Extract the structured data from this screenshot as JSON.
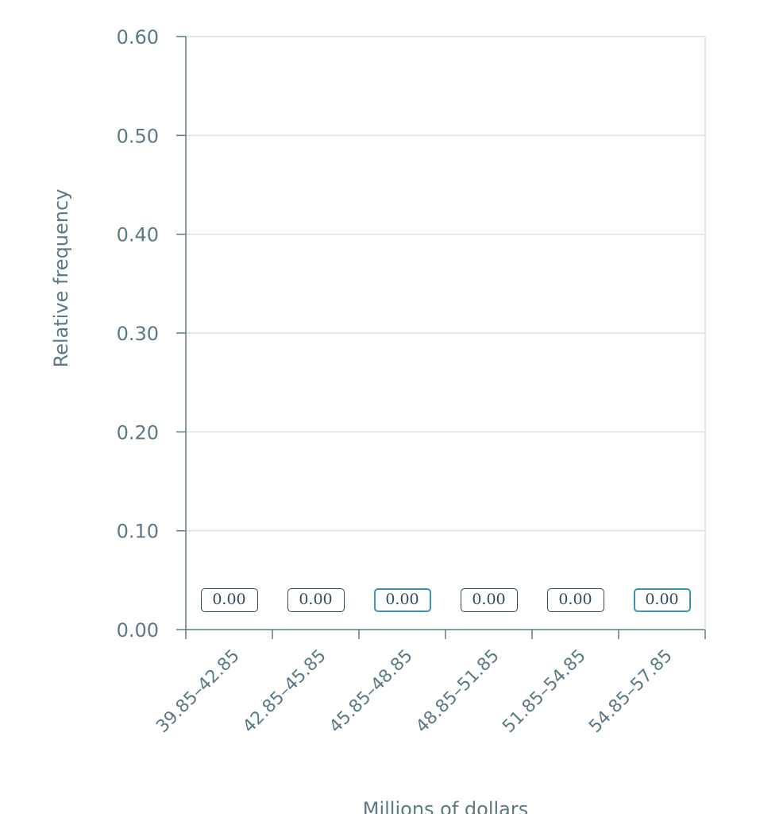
{
  "chart_data": {
    "type": "bar",
    "categories": [
      "39.85–42.85",
      "42.85–45.85",
      "45.85–48.85",
      "48.85–51.85",
      "51.85–54.85",
      "54.85–57.85"
    ],
    "values": [
      0.0,
      0.0,
      0.0,
      0.0,
      0.0,
      0.0
    ],
    "value_labels": [
      "0.00",
      "0.00",
      "0.00",
      "0.00",
      "0.00",
      "0.00"
    ],
    "highlighted_inputs": [
      false,
      false,
      true,
      false,
      false,
      true
    ],
    "yticks": [
      "0.00",
      "0.10",
      "0.20",
      "0.30",
      "0.40",
      "0.50",
      "0.60"
    ],
    "ylim": [
      0,
      0.6
    ],
    "xlabel": "Millions of dollars",
    "ylabel": "Relative frequency",
    "grid": true
  },
  "colors": {
    "axis": "#5b7a85",
    "grid": "#d9e1e4",
    "input_border": "#2f4b5a",
    "input_highlight": "#3d94ad"
  }
}
